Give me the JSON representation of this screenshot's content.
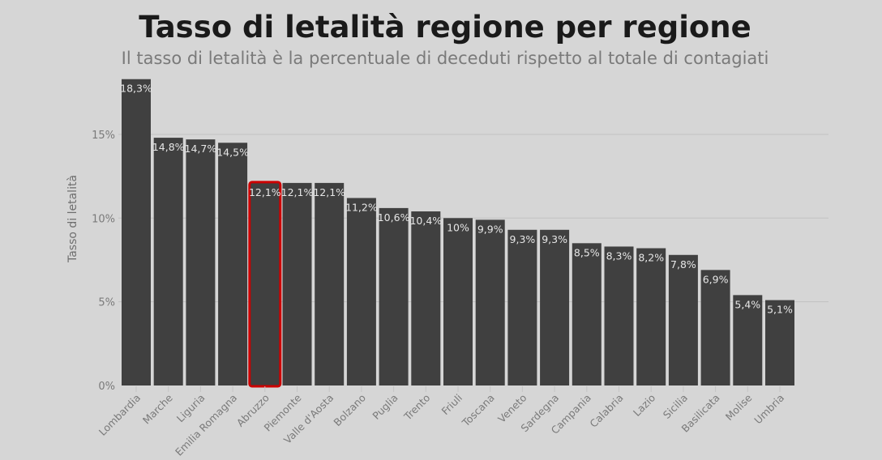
{
  "chart_data": {
    "type": "bar",
    "title": "Tasso di letalità regione per regione",
    "subtitle": "Il tasso di letalità è la percentuale di deceduti rispetto al totale di contagiati",
    "ylabel": "Tasso di letalità",
    "xlabel": "",
    "ylim": [
      0,
      18.3
    ],
    "yticks": [
      0,
      5,
      10,
      15
    ],
    "ytick_labels": [
      "0%",
      "5%",
      "10%",
      "15%"
    ],
    "grid": true,
    "categories": [
      "Lombardia",
      "Marche",
      "Liguria",
      "Emilia Romagna",
      "Abruzzo",
      "Piemonte",
      "Valle d'Aosta",
      "Bolzano",
      "Puglia",
      "Trento",
      "Friuli",
      "Toscana",
      "Veneto",
      "Sardegna",
      "Campania",
      "Calabria",
      "Lazio",
      "Sicilia",
      "Basilicata",
      "Molise",
      "Umbria"
    ],
    "values": [
      18.3,
      14.8,
      14.7,
      14.5,
      12.1,
      12.1,
      12.1,
      11.2,
      10.6,
      10.4,
      10,
      9.9,
      9.3,
      9.3,
      8.5,
      8.3,
      8.2,
      7.8,
      6.9,
      5.4,
      5.1
    ],
    "data_labels": [
      "18,3%",
      "14,8%",
      "14,7%",
      "14,5%",
      "12,1%",
      "12,1%",
      "12,1%",
      "11,2%",
      "10,6%",
      "10,4%",
      "10%",
      "9,9%",
      "9,3%",
      "9,3%",
      "8,5%",
      "8,3%",
      "8,2%",
      "7,8%",
      "6,9%",
      "5,4%",
      "5,1%"
    ],
    "highlighted": "Abruzzo",
    "colors": {
      "bar": "#404040",
      "highlight": "#cc0000",
      "background": "#d6d6d6",
      "label": "#e6e6e6"
    }
  }
}
